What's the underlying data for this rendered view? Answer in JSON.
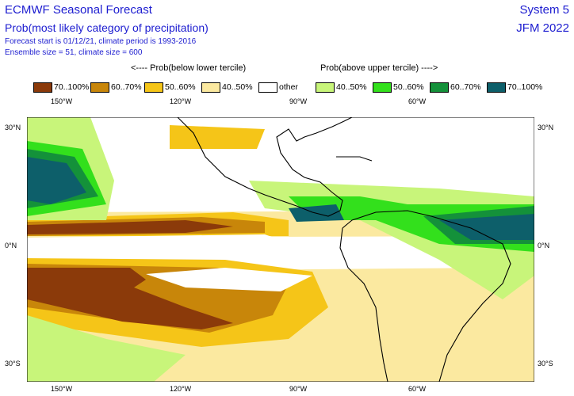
{
  "header": {
    "title": "ECMWF Seasonal Forecast",
    "subtitle": "Prob(most likely category of precipitation)",
    "forecast_line": "Forecast start is 01/12/21, climate period is 1993-2016",
    "ensemble_line": "Ensemble size = 51, climate size = 600",
    "system": "System 5",
    "period": "JFM 2022"
  },
  "legend": {
    "below_caption": "<---- Prob(below lower tercile)",
    "above_caption": "Prob(above upper tercile) ---->",
    "items": [
      {
        "label": "70..100%",
        "color": "#8b3a0a"
      },
      {
        "label": "60..70%",
        "color": "#c8860a"
      },
      {
        "label": "50..60%",
        "color": "#f5c518"
      },
      {
        "label": "40..50%",
        "color": "#fbe9a0"
      },
      {
        "label": "other",
        "color": "#ffffff"
      },
      {
        "label": "40..50%",
        "color": "#c8f57a"
      },
      {
        "label": "50..60%",
        "color": "#33e01c"
      },
      {
        "label": "60..70%",
        "color": "#14913a"
      },
      {
        "label": "70..100%",
        "color": "#0d5f6a"
      }
    ]
  },
  "axes": {
    "top_lon": [
      "150°W",
      "120°W",
      "90°W",
      "60°W"
    ],
    "bottom_lon": [
      "150°W",
      "120°W",
      "90°W",
      "60°W"
    ],
    "left_lat": [
      "30°N",
      "0°N",
      "30°S"
    ],
    "right_lat": [
      "30°N",
      "0°N",
      "30°S"
    ]
  }
}
